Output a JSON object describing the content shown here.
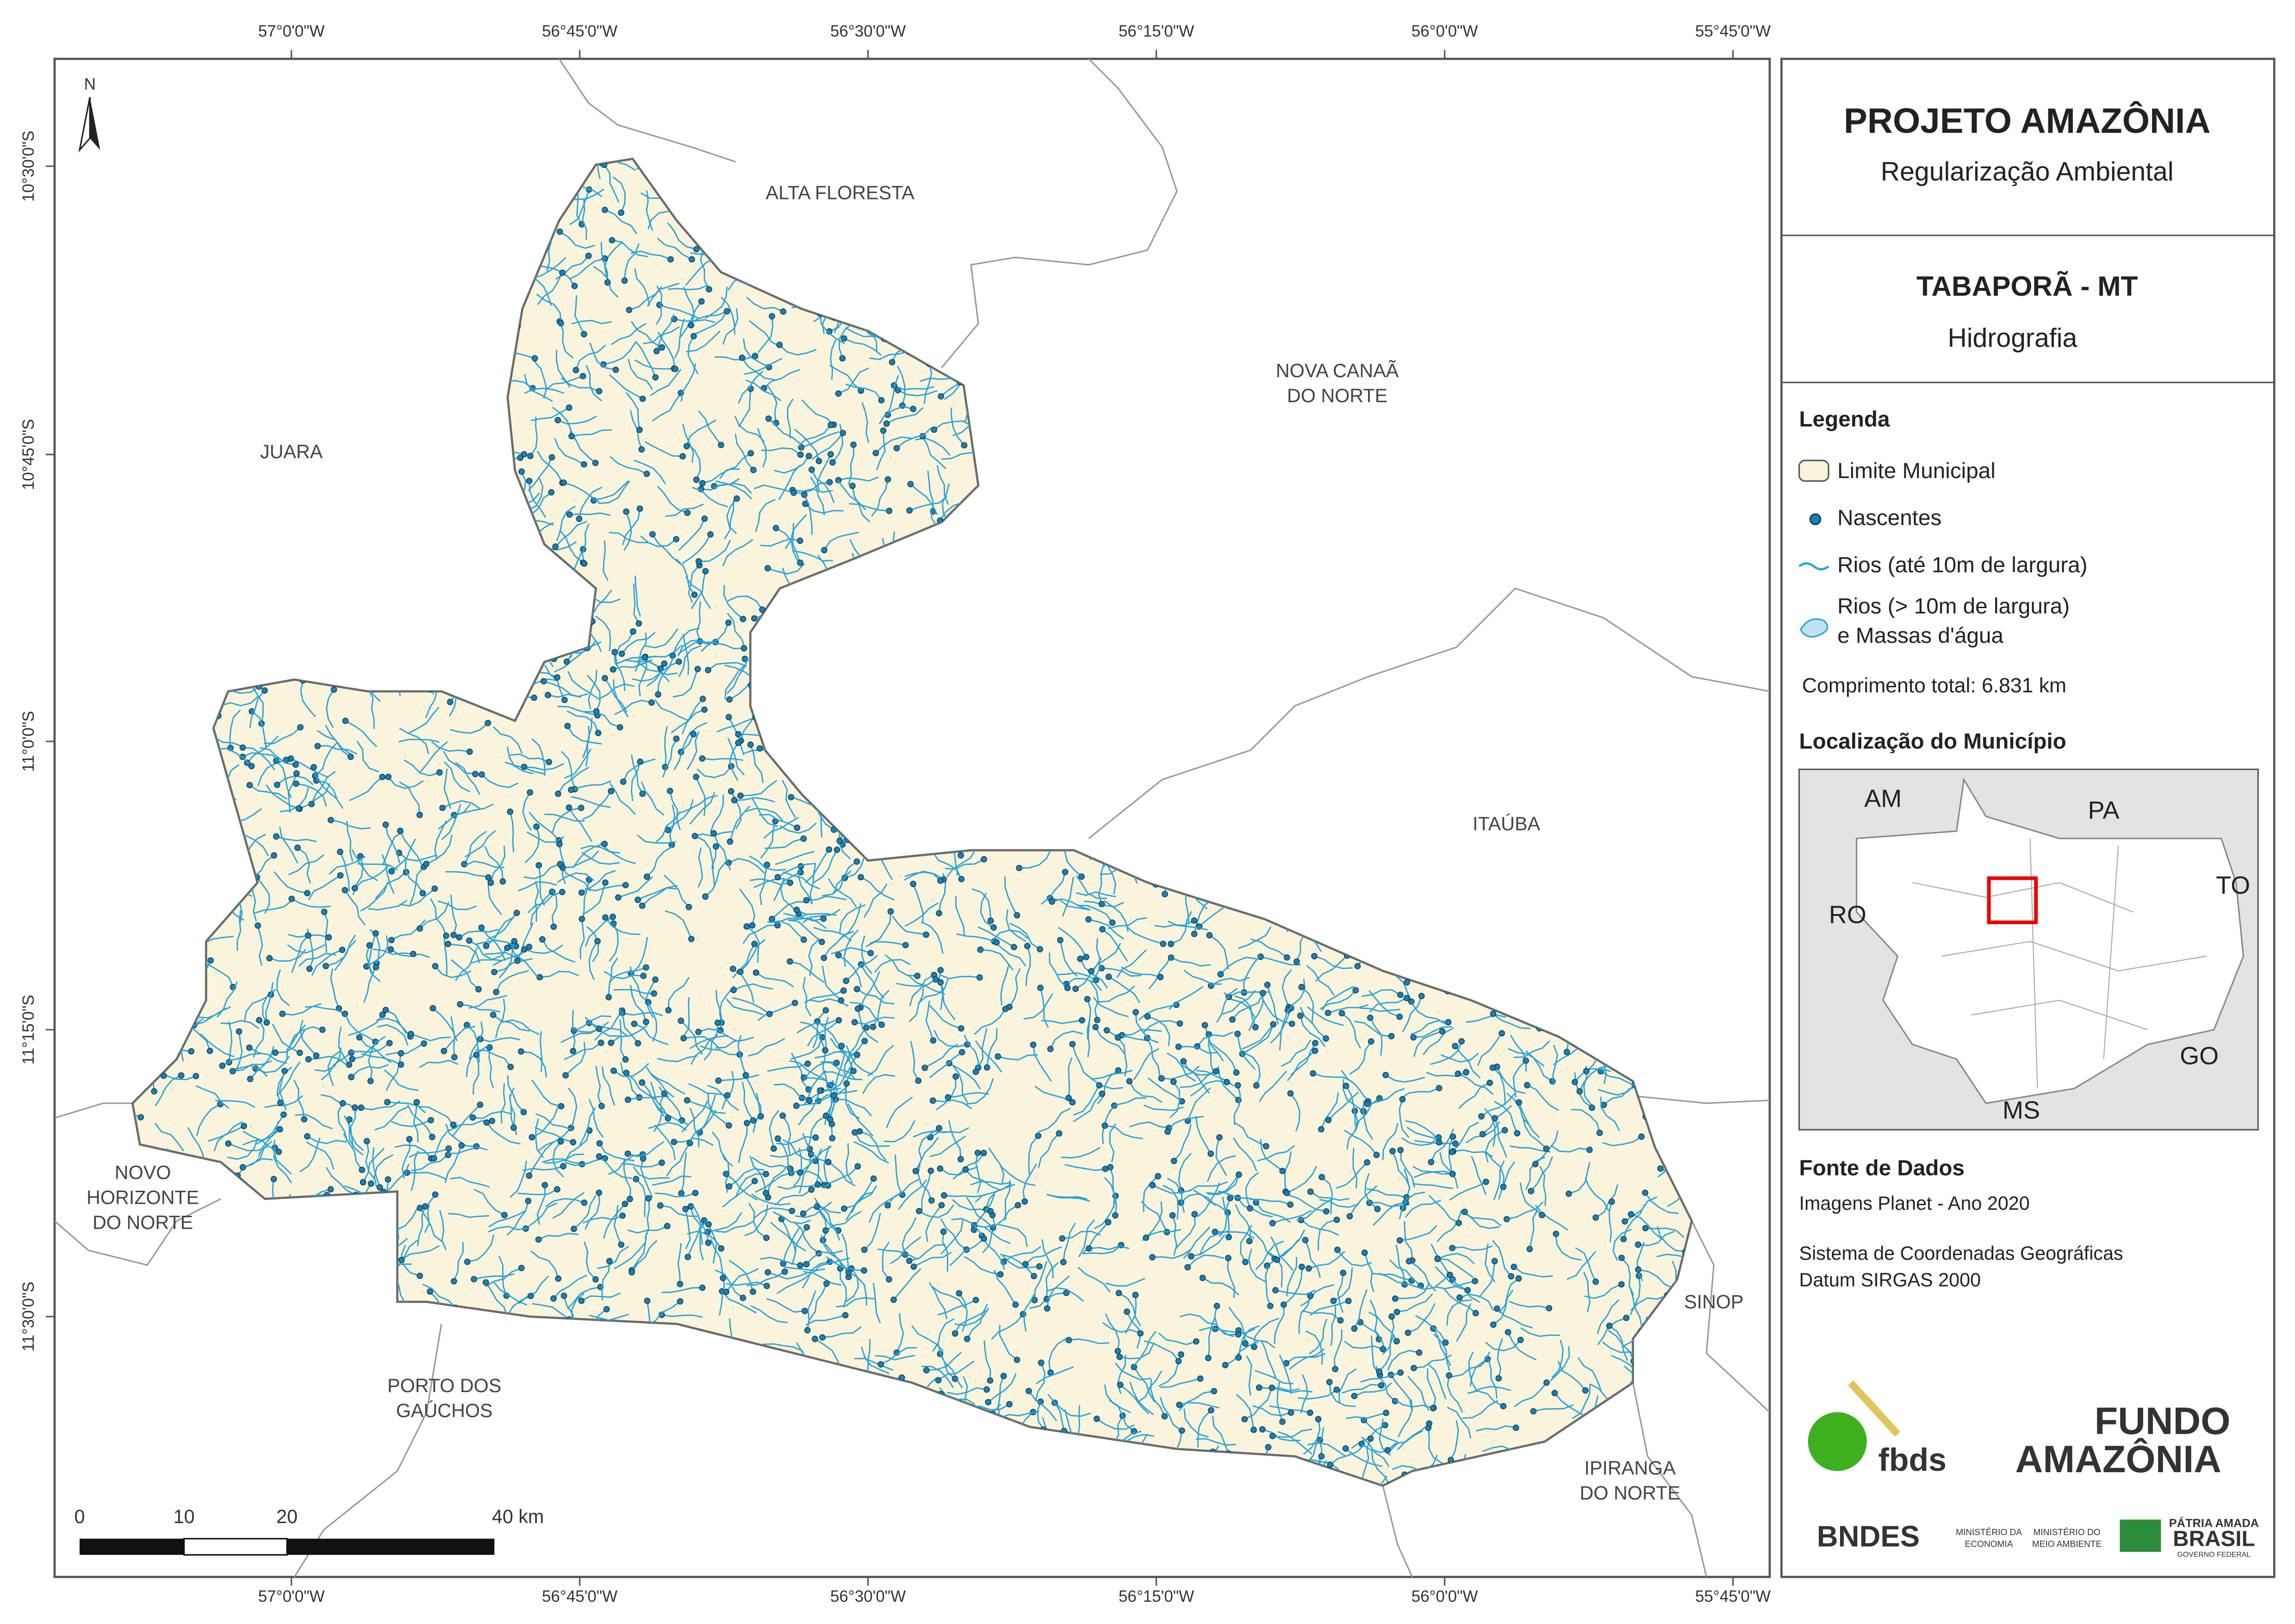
{
  "map": {
    "north": "N",
    "lon_labels": [
      "57°0'0\"W",
      "56°45'0\"W",
      "56°30'0\"W",
      "56°15'0\"W",
      "56°0'0\"W",
      "55°45'0\"W"
    ],
    "lat_labels": [
      "10°30'0\"S",
      "10°45'0\"S",
      "11°0'0\"S",
      "11°15'0\"S",
      "11°30'0\"S"
    ],
    "places": [
      {
        "lines": [
          "ALTA FLORESTA"
        ]
      },
      {
        "lines": [
          "NOVA CANAÃ",
          "DO NORTE"
        ]
      },
      {
        "lines": [
          "JUARA"
        ]
      },
      {
        "lines": [
          "ITAÚBA"
        ]
      },
      {
        "lines": [
          "NOVO",
          "HORIZONTE",
          "DO NORTE"
        ]
      },
      {
        "lines": [
          "SINOP"
        ]
      },
      {
        "lines": [
          "PORTO DOS",
          "GAÚCHOS"
        ]
      },
      {
        "lines": [
          "IPIRANGA",
          "DO NORTE"
        ]
      }
    ],
    "scale_labels": [
      "0",
      "10",
      "20",
      "40 km"
    ]
  },
  "panel": {
    "title": "PROJETO AMAZÔNIA",
    "subtitle": "Regularização Ambiental",
    "municipality": "TABAPORÃ - MT",
    "theme": "Hidrografia",
    "legend_title": "Legenda",
    "legend": [
      {
        "lines": [
          "Limite Municipal"
        ]
      },
      {
        "lines": [
          "Nascentes"
        ]
      },
      {
        "lines": [
          "Rios (até 10m de largura)"
        ]
      },
      {
        "lines": [
          "Rios (> 10m de largura)",
          "e Massas d'água"
        ]
      }
    ],
    "total_length": "Comprimento total: 6.831 km",
    "location_title": "Localização do Município",
    "states": [
      "AM",
      "PA",
      "TO",
      "RO",
      "GO",
      "MS"
    ],
    "source_title": "Fonte de Dados",
    "source_lines": [
      "Imagens Planet - Ano 2020",
      "Sistema de Coordenadas Geográficas",
      "Datum SIRGAS 2000"
    ],
    "logos": [
      "fbds",
      "FUNDO",
      "AMAZÔNIA",
      "BNDES",
      "MINISTÉRIO DA",
      "ECONOMIA",
      "MINISTÉRIO DO",
      "MEIO AMBIENTE",
      "PÁTRIA AMADA",
      "BRASIL",
      "GOVERNO FEDERAL"
    ]
  }
}
